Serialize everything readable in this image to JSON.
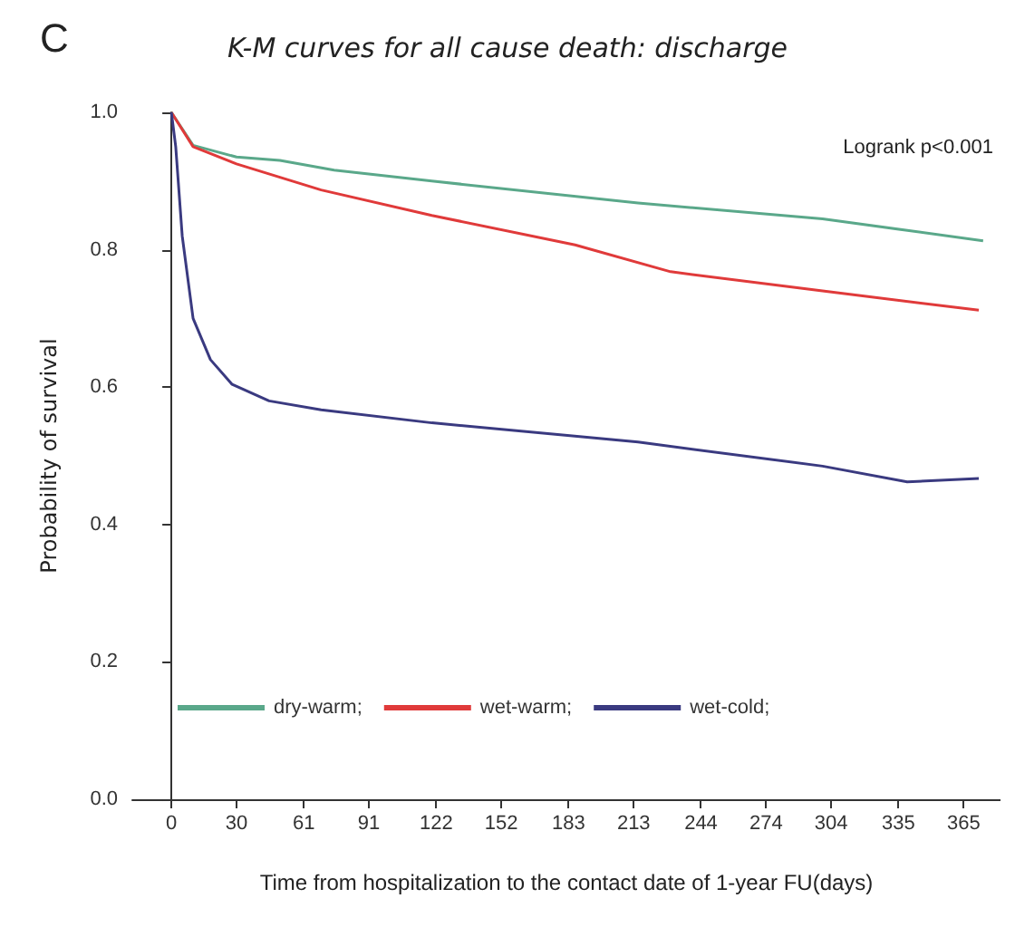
{
  "chart_data": {
    "type": "line",
    "title": "K-M curves for all cause death: discharge",
    "xlabel": "Time from hospitalization to the contact date of 1-year FU(days)",
    "ylabel": "Probability of survival",
    "annotations": [
      "C",
      "Logrank p<0.001"
    ],
    "xlim": [
      -18,
      382
    ],
    "xticks": [
      0,
      30,
      61,
      91,
      122,
      152,
      183,
      213,
      244,
      274,
      304,
      335,
      365
    ],
    "ylim": [
      0,
      1
    ],
    "yticks": [
      {
        "value": 0,
        "label": "0.0"
      },
      {
        "value": 0.2,
        "label": "0.2"
      },
      {
        "value": 0.4,
        "label": "0.4"
      },
      {
        "value": 0.6,
        "label": "0.6"
      },
      {
        "value": 0.8,
        "label": "0.8"
      },
      {
        "value": 1,
        "label": "1.0"
      }
    ],
    "legend": "bottom left",
    "marker": "none",
    "line_style": "solid",
    "series": [
      {
        "name": "dry-warm;",
        "color": "#5aa88a",
        "x": [
          0,
          10,
          30,
          50,
          75,
          120,
          215,
          300,
          374
        ],
        "values": [
          1,
          0.952,
          0.935,
          0.93,
          0.916,
          0.9,
          0.868,
          0.845,
          0.813
        ]
      },
      {
        "name": "wet-warm;",
        "color": "#e03a3a",
        "x": [
          0,
          10,
          30,
          69,
          120,
          186,
          230,
          300,
          372
        ],
        "values": [
          1,
          0.95,
          0.925,
          0.887,
          0.85,
          0.807,
          0.768,
          0.74,
          0.712
        ]
      },
      {
        "name": "wet-cold;",
        "color": "#3a3a80",
        "x": [
          0,
          2,
          5,
          10,
          18,
          28,
          45,
          69,
          120,
          215,
          300,
          339,
          372
        ],
        "values": [
          1,
          0.95,
          0.82,
          0.7,
          0.64,
          0.604,
          0.58,
          0.567,
          0.548,
          0.52,
          0.485,
          0.462,
          0.467
        ]
      }
    ]
  }
}
